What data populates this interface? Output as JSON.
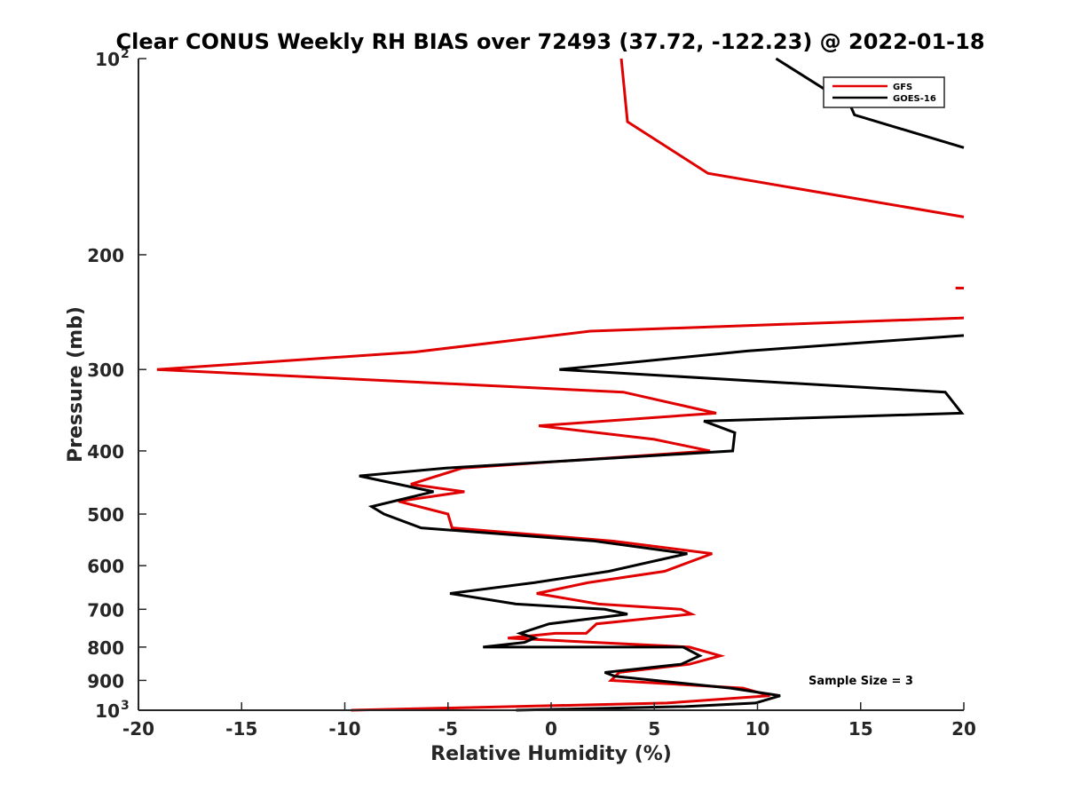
{
  "chart_data": {
    "type": "line",
    "title": "Clear CONUS Weekly RH BIAS over 72493 (37.72, -122.23) @ 2022-01-18",
    "xlabel": "Relative Humidity (%)",
    "ylabel": "Pressure (mb)",
    "xlim": [
      -20,
      20
    ],
    "ylim": [
      100,
      1000
    ],
    "yscale": "log",
    "yreversed": true,
    "grid": false,
    "legend_position": "top-right",
    "annotation": "Sample Size = 3",
    "x_ticks": [
      {
        "value": -20,
        "label": "-20"
      },
      {
        "value": -15,
        "label": "-15"
      },
      {
        "value": -10,
        "label": "-10"
      },
      {
        "value": -5,
        "label": "-5"
      },
      {
        "value": 0,
        "label": "0"
      },
      {
        "value": 5,
        "label": "5"
      },
      {
        "value": 10,
        "label": "10"
      },
      {
        "value": 15,
        "label": "15"
      },
      {
        "value": 20,
        "label": "20"
      }
    ],
    "y_ticks": [
      {
        "value": 100,
        "label": "10",
        "exp": "2"
      },
      {
        "value": 200,
        "label": "200",
        "exp": ""
      },
      {
        "value": 300,
        "label": "300",
        "exp": ""
      },
      {
        "value": 400,
        "label": "400",
        "exp": ""
      },
      {
        "value": 500,
        "label": "500",
        "exp": ""
      },
      {
        "value": 600,
        "label": "600",
        "exp": ""
      },
      {
        "value": 700,
        "label": "700",
        "exp": ""
      },
      {
        "value": 800,
        "label": "800",
        "exp": ""
      },
      {
        "value": 900,
        "label": "900",
        "exp": ""
      },
      {
        "value": 1000,
        "label": "10",
        "exp": "3"
      }
    ],
    "series": [
      {
        "name": "GFS",
        "color": "#e00000",
        "segments": [
          [
            [
              3.4,
              100
            ],
            [
              3.7,
              125
            ],
            [
              7.6,
              150
            ],
            [
              20,
              175
            ]
          ],
          [
            [
              19.6,
              225
            ],
            [
              20,
              225
            ]
          ],
          [
            [
              20,
              250
            ],
            [
              1.9,
              262
            ],
            [
              -6.6,
              282
            ],
            [
              -19.1,
              300
            ],
            [
              3.5,
              325
            ],
            [
              8.0,
              350
            ],
            [
              -0.6,
              366
            ],
            [
              5.0,
              384
            ],
            [
              7.7,
              400
            ],
            [
              -4.3,
              425
            ],
            [
              -6.8,
              450
            ],
            [
              -4.2,
              462
            ],
            [
              -7.4,
              478
            ],
            [
              -5.0,
              500
            ],
            [
              -4.8,
              525
            ],
            [
              3.0,
              550
            ],
            [
              7.8,
              575
            ],
            [
              5.5,
              612
            ],
            [
              1.8,
              637
            ],
            [
              -0.7,
              662
            ],
            [
              2.3,
              687
            ],
            [
              6.3,
              700
            ],
            [
              6.8,
              712
            ],
            [
              2.2,
              737
            ],
            [
              1.7,
              762
            ],
            [
              0.2,
              762
            ],
            [
              -2.1,
              775
            ],
            [
              6.7,
              800
            ],
            [
              8.2,
              825
            ],
            [
              6.7,
              850
            ],
            [
              3.3,
              875
            ],
            [
              2.9,
              900
            ],
            [
              9.3,
              925
            ],
            [
              10.6,
              950
            ],
            [
              5.6,
              975
            ],
            [
              -9.7,
              1000
            ]
          ]
        ]
      },
      {
        "name": "GOES-16",
        "color": "#000000",
        "segments": [
          [
            [
              10.9,
              100
            ],
            [
              14.5,
              118
            ],
            [
              14.7,
              122
            ],
            [
              20,
              137
            ]
          ],
          [
            [
              20,
              266
            ],
            [
              9.5,
              281
            ],
            [
              0.4,
              300
            ],
            [
              19.1,
              325
            ],
            [
              19.9,
              350
            ],
            [
              7.4,
              360
            ],
            [
              8.9,
              375
            ],
            [
              8.8,
              400
            ],
            [
              -5.1,
              425
            ],
            [
              -9.3,
              437
            ],
            [
              -5.7,
              462
            ],
            [
              -8.7,
              487
            ],
            [
              -8.1,
              500
            ],
            [
              -6.3,
              525
            ],
            [
              2.1,
              550
            ],
            [
              6.6,
              575
            ],
            [
              2.8,
              612
            ],
            [
              -0.8,
              637
            ],
            [
              -4.9,
              662
            ],
            [
              -1.7,
              687
            ],
            [
              2.6,
              700
            ],
            [
              3.7,
              712
            ],
            [
              -0.1,
              737
            ],
            [
              -1.5,
              762
            ],
            [
              -0.8,
              775
            ],
            [
              -1.3,
              787
            ],
            [
              -3.3,
              800
            ],
            [
              6.4,
              800
            ],
            [
              7.2,
              825
            ],
            [
              6.3,
              850
            ],
            [
              2.6,
              875
            ],
            [
              3.1,
              887
            ],
            [
              8.7,
              925
            ],
            [
              11.1,
              950
            ],
            [
              9.9,
              975
            ],
            [
              6.5,
              987
            ],
            [
              -1.7,
              1000
            ]
          ]
        ]
      }
    ]
  }
}
